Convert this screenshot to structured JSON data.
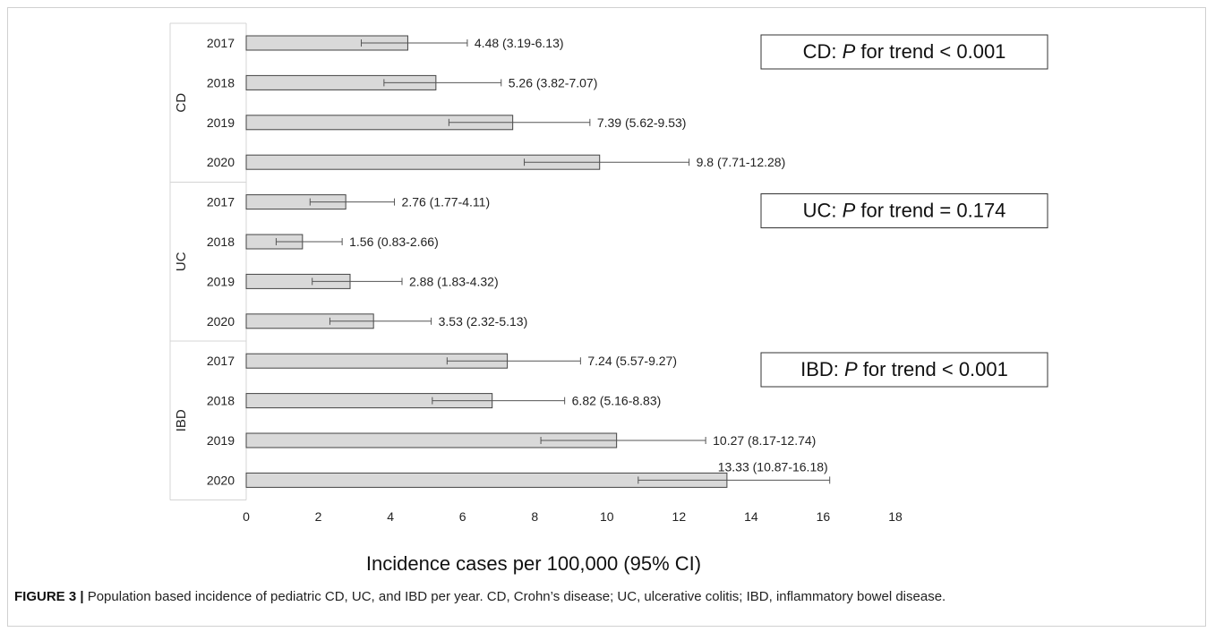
{
  "chart_data": {
    "type": "bar",
    "orientation": "horizontal",
    "xlabel": "Incidence cases per 100,000 (95% CI)",
    "xlim": [
      0,
      18
    ],
    "x_ticks": [
      "0",
      "2",
      "4",
      "6",
      "8",
      "10",
      "12",
      "14",
      "16",
      "18"
    ],
    "grid": false,
    "bar_color": "#d9d9d9",
    "groups": [
      {
        "name": "CD",
        "trend_note": {
          "prefix": "CD: ",
          "italic": "P",
          "suffix": " for trend < 0.001"
        },
        "rows": [
          {
            "year": "2017",
            "value": 4.48,
            "low": 3.19,
            "high": 6.13,
            "label": "4.48 (3.19-6.13)"
          },
          {
            "year": "2018",
            "value": 5.26,
            "low": 3.82,
            "high": 7.07,
            "label": "5.26 (3.82-7.07)"
          },
          {
            "year": "2019",
            "value": 7.39,
            "low": 5.62,
            "high": 9.53,
            "label": "7.39 (5.62-9.53)"
          },
          {
            "year": "2020",
            "value": 9.8,
            "low": 7.71,
            "high": 12.28,
            "label": "9.8 (7.71-12.28)"
          }
        ]
      },
      {
        "name": "UC",
        "trend_note": {
          "prefix": "UC: ",
          "italic": "P",
          "suffix": " for trend = 0.174"
        },
        "rows": [
          {
            "year": "2017",
            "value": 2.76,
            "low": 1.77,
            "high": 4.11,
            "label": "2.76 (1.77-4.11)"
          },
          {
            "year": "2018",
            "value": 1.56,
            "low": 0.83,
            "high": 2.66,
            "label": "1.56 (0.83-2.66)"
          },
          {
            "year": "2019",
            "value": 2.88,
            "low": 1.83,
            "high": 4.32,
            "label": "2.88 (1.83-4.32)"
          },
          {
            "year": "2020",
            "value": 3.53,
            "low": 2.32,
            "high": 5.13,
            "label": "3.53 (2.32-5.13)"
          }
        ]
      },
      {
        "name": "IBD",
        "trend_note": {
          "prefix": "IBD: ",
          "italic": "P",
          "suffix": " for trend < 0.001"
        },
        "rows": [
          {
            "year": "2017",
            "value": 7.24,
            "low": 5.57,
            "high": 9.27,
            "label": "7.24 (5.57-9.27)"
          },
          {
            "year": "2018",
            "value": 6.82,
            "low": 5.16,
            "high": 8.83,
            "label": "6.82 (5.16-8.83)"
          },
          {
            "year": "2019",
            "value": 10.27,
            "low": 8.17,
            "high": 12.74,
            "label": "10.27 (8.17-12.74)"
          },
          {
            "year": "2020",
            "value": 13.33,
            "low": 10.87,
            "high": 16.18,
            "label": "13.33 (10.87-16.18)"
          }
        ]
      }
    ]
  },
  "caption": {
    "label": "FIGURE 3 |",
    "text": " Population based incidence of pediatric CD, UC, and IBD per year. CD, Crohn’s disease; UC, ulcerative colitis; IBD, inflammatory bowel disease."
  }
}
